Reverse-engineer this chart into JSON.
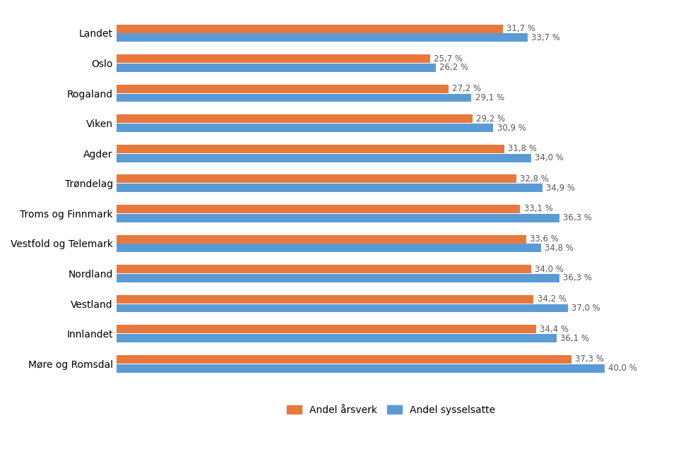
{
  "categories": [
    "Møre og Romsdal",
    "Innlandet",
    "Vestland",
    "Nordland",
    "Vestfold og Telemark",
    "Troms og Finnmark",
    "Trøndelag",
    "Agder",
    "Viken",
    "Rogaland",
    "Oslo",
    "Landet"
  ],
  "arsverk": [
    37.3,
    34.4,
    34.2,
    34.0,
    33.6,
    33.1,
    32.8,
    31.8,
    29.2,
    27.2,
    25.7,
    31.7
  ],
  "sysselsatte": [
    40.0,
    36.1,
    37.0,
    36.3,
    34.8,
    36.3,
    34.9,
    34.0,
    30.9,
    29.1,
    26.2,
    33.7
  ],
  "color_arsverk": "#E8783C",
  "color_sysselsatte": "#5B9BD5",
  "bar_height": 0.28,
  "bar_gap": 0.02,
  "xlim": [
    0,
    45
  ],
  "legend_labels": [
    "Andel årsverk",
    "Andel sysselsatte"
  ],
  "label_fontsize": 8.5,
  "tick_fontsize": 10,
  "legend_fontsize": 10,
  "background_color": "#ffffff",
  "label_color": "#595959"
}
